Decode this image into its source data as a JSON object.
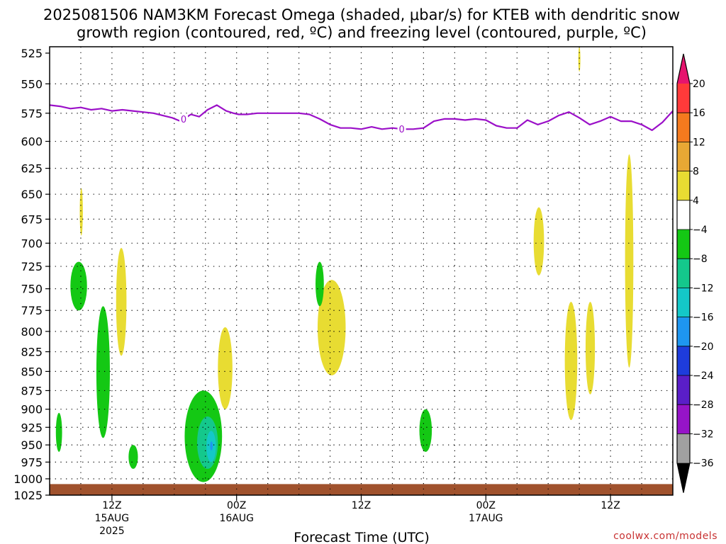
{
  "chart_data": {
    "type": "heatmap",
    "title": "2025081506 NAM3KM Forecast Omega (shaded, μbar/s) for KTEB with dendritic snow",
    "subtitle": "growth region (contoured, red, ºC) and freezing level (contoured, purple, ºC)",
    "xlabel": "Forecast Time (UTC)",
    "ylabel": "",
    "credit": "coolwx.com/models",
    "y_scale": "log-pressure",
    "y_inverted": true,
    "ylim_hPa": [
      1025,
      525
    ],
    "yticks": [
      525,
      550,
      575,
      600,
      625,
      650,
      675,
      700,
      725,
      750,
      775,
      800,
      825,
      850,
      875,
      900,
      925,
      950,
      975,
      1000,
      1025
    ],
    "xlim_hours_since_init": [
      0,
      60
    ],
    "x_ticks": [
      {
        "hour": 6,
        "l1": "12Z",
        "l2": "15AUG",
        "l3": "2025"
      },
      {
        "hour": 18,
        "l1": "00Z",
        "l2": "16AUG",
        "l3": ""
      },
      {
        "hour": 30,
        "l1": "12Z",
        "l2": "",
        "l3": ""
      },
      {
        "hour": 42,
        "l1": "00Z",
        "l2": "17AUG",
        "l3": ""
      },
      {
        "hour": 54,
        "l1": "12Z",
        "l2": "",
        "l3": ""
      }
    ],
    "grid": true,
    "colorbar": {
      "labels": [
        "20",
        "16",
        "12",
        "8",
        "4",
        "−4",
        "−8",
        "−12",
        "−16",
        "−20",
        "−24",
        "−28",
        "−32",
        "−36"
      ],
      "colors": [
        "#ff3a3a",
        "#f47a1e",
        "#e8a834",
        "#e8dc32",
        "#ffffff",
        "#14c814",
        "#14c88c",
        "#14c8c8",
        "#1e96f0",
        "#1e3cdc",
        "#5a1ec8",
        "#9614c8",
        "#a0a0a0"
      ],
      "top_color": "#e6146e",
      "bottom_color": "#000000"
    },
    "freezing_level": {
      "label": "0",
      "color": "#9b10c8",
      "hours": [
        0,
        1,
        2,
        3,
        4,
        5,
        6,
        7,
        8,
        9,
        10,
        10.9,
        11.8,
        12.6,
        13.6,
        14.4,
        15.2,
        16.1,
        17,
        17.7,
        18.2,
        19,
        20,
        21,
        22,
        23,
        24,
        25,
        26,
        27,
        28,
        29,
        30,
        31,
        32,
        33,
        34,
        35,
        36,
        37,
        38,
        39,
        40,
        41,
        42,
        43,
        44,
        45,
        46,
        47,
        48,
        49,
        50,
        51,
        52,
        53,
        54,
        55,
        56,
        57,
        58,
        59,
        60
      ],
      "hPa": [
        568,
        569,
        571,
        570,
        572,
        571,
        573,
        572,
        573,
        574,
        575,
        577,
        579,
        582,
        576,
        578,
        572,
        568,
        573,
        575,
        576,
        576,
        575,
        575,
        575,
        575,
        575,
        576,
        580,
        585,
        588,
        588,
        589,
        587,
        589,
        588,
        589,
        589,
        588,
        582,
        580,
        580,
        581,
        580,
        581,
        586,
        588,
        588,
        581,
        585,
        582,
        577,
        574,
        579,
        585,
        582,
        578,
        582,
        582,
        585,
        590,
        583,
        573
      ],
      "label_at_hours": [
        12.9,
        33.9
      ]
    },
    "omega_regions": [
      {
        "value_class": "4 to 8",
        "color": "#e8dc32",
        "hours": [
          2.9,
          3.2
        ],
        "hPa": [
          644,
          692
        ]
      },
      {
        "value_class": "4 to 8",
        "color": "#e8dc32",
        "hours": [
          6.4,
          7.4
        ],
        "hPa": [
          705,
          830
        ]
      },
      {
        "value_class": "4 to 8",
        "color": "#e8dc32",
        "hours": [
          16.2,
          17.6
        ],
        "hPa": [
          795,
          900
        ]
      },
      {
        "value_class": "4 to 8",
        "color": "#e8dc32",
        "hours": [
          25.8,
          28.5
        ],
        "hPa": [
          740,
          855
        ]
      },
      {
        "value_class": "4 to 8",
        "color": "#e8dc32",
        "hours": [
          46.6,
          47.6
        ],
        "hPa": [
          663,
          735
        ]
      },
      {
        "value_class": "4 to 8",
        "color": "#e8dc32",
        "hours": [
          49.6,
          50.8
        ],
        "hPa": [
          765,
          915
        ]
      },
      {
        "value_class": "4 to 8",
        "color": "#e8dc32",
        "hours": [
          51.6,
          52.5
        ],
        "hPa": [
          765,
          880
        ]
      },
      {
        "value_class": "4 to 8",
        "color": "#e8dc32",
        "hours": [
          55.4,
          56.2
        ],
        "hPa": [
          612,
          845
        ]
      },
      {
        "value_class": "4 to 8",
        "color": "#e8dc32",
        "hours": [
          50.9,
          51.1
        ],
        "hPa": [
          520,
          540
        ]
      },
      {
        "value_class": "-4 to -8",
        "color": "#14c814",
        "hours": [
          2.0,
          3.6
        ],
        "hPa": [
          720,
          775
        ]
      },
      {
        "value_class": "-4 to -8",
        "color": "#14c814",
        "hours": [
          4.5,
          5.8
        ],
        "hPa": [
          770,
          940
        ]
      },
      {
        "value_class": "-4 to -8",
        "color": "#14c814",
        "hours": [
          0.6,
          1.2
        ],
        "hPa": [
          905,
          960
        ]
      },
      {
        "value_class": "-4 to -8",
        "color": "#14c814",
        "hours": [
          7.6,
          8.5
        ],
        "hPa": [
          950,
          985
        ]
      },
      {
        "value_class": "-4 to -8",
        "color": "#14c814",
        "hours": [
          13.0,
          16.6
        ],
        "hPa": [
          875,
          1005
        ]
      },
      {
        "value_class": "-4 to -8",
        "color": "#14c814",
        "hours": [
          25.6,
          26.4
        ],
        "hPa": [
          720,
          770
        ]
      },
      {
        "value_class": "-4 to -8",
        "color": "#14c814",
        "hours": [
          35.6,
          36.8
        ],
        "hPa": [
          900,
          960
        ]
      },
      {
        "value_class": "-8 to -12",
        "color": "#14c88c",
        "hours": [
          14.2,
          16.2
        ],
        "hPa": [
          910,
          985
        ]
      },
      {
        "value_class": "-12 to -16",
        "color": "#14c8c8",
        "hours": [
          15.1,
          16.0
        ],
        "hPa": [
          930,
          975
        ]
      },
      {
        "value_class": "-16 to -20",
        "color": "#1e96f0",
        "hours": [
          15.45,
          15.7
        ],
        "hPa": [
          945,
          958
        ]
      }
    ],
    "terrain": {
      "color": "#a0522d",
      "top_hPa": 1008
    }
  }
}
